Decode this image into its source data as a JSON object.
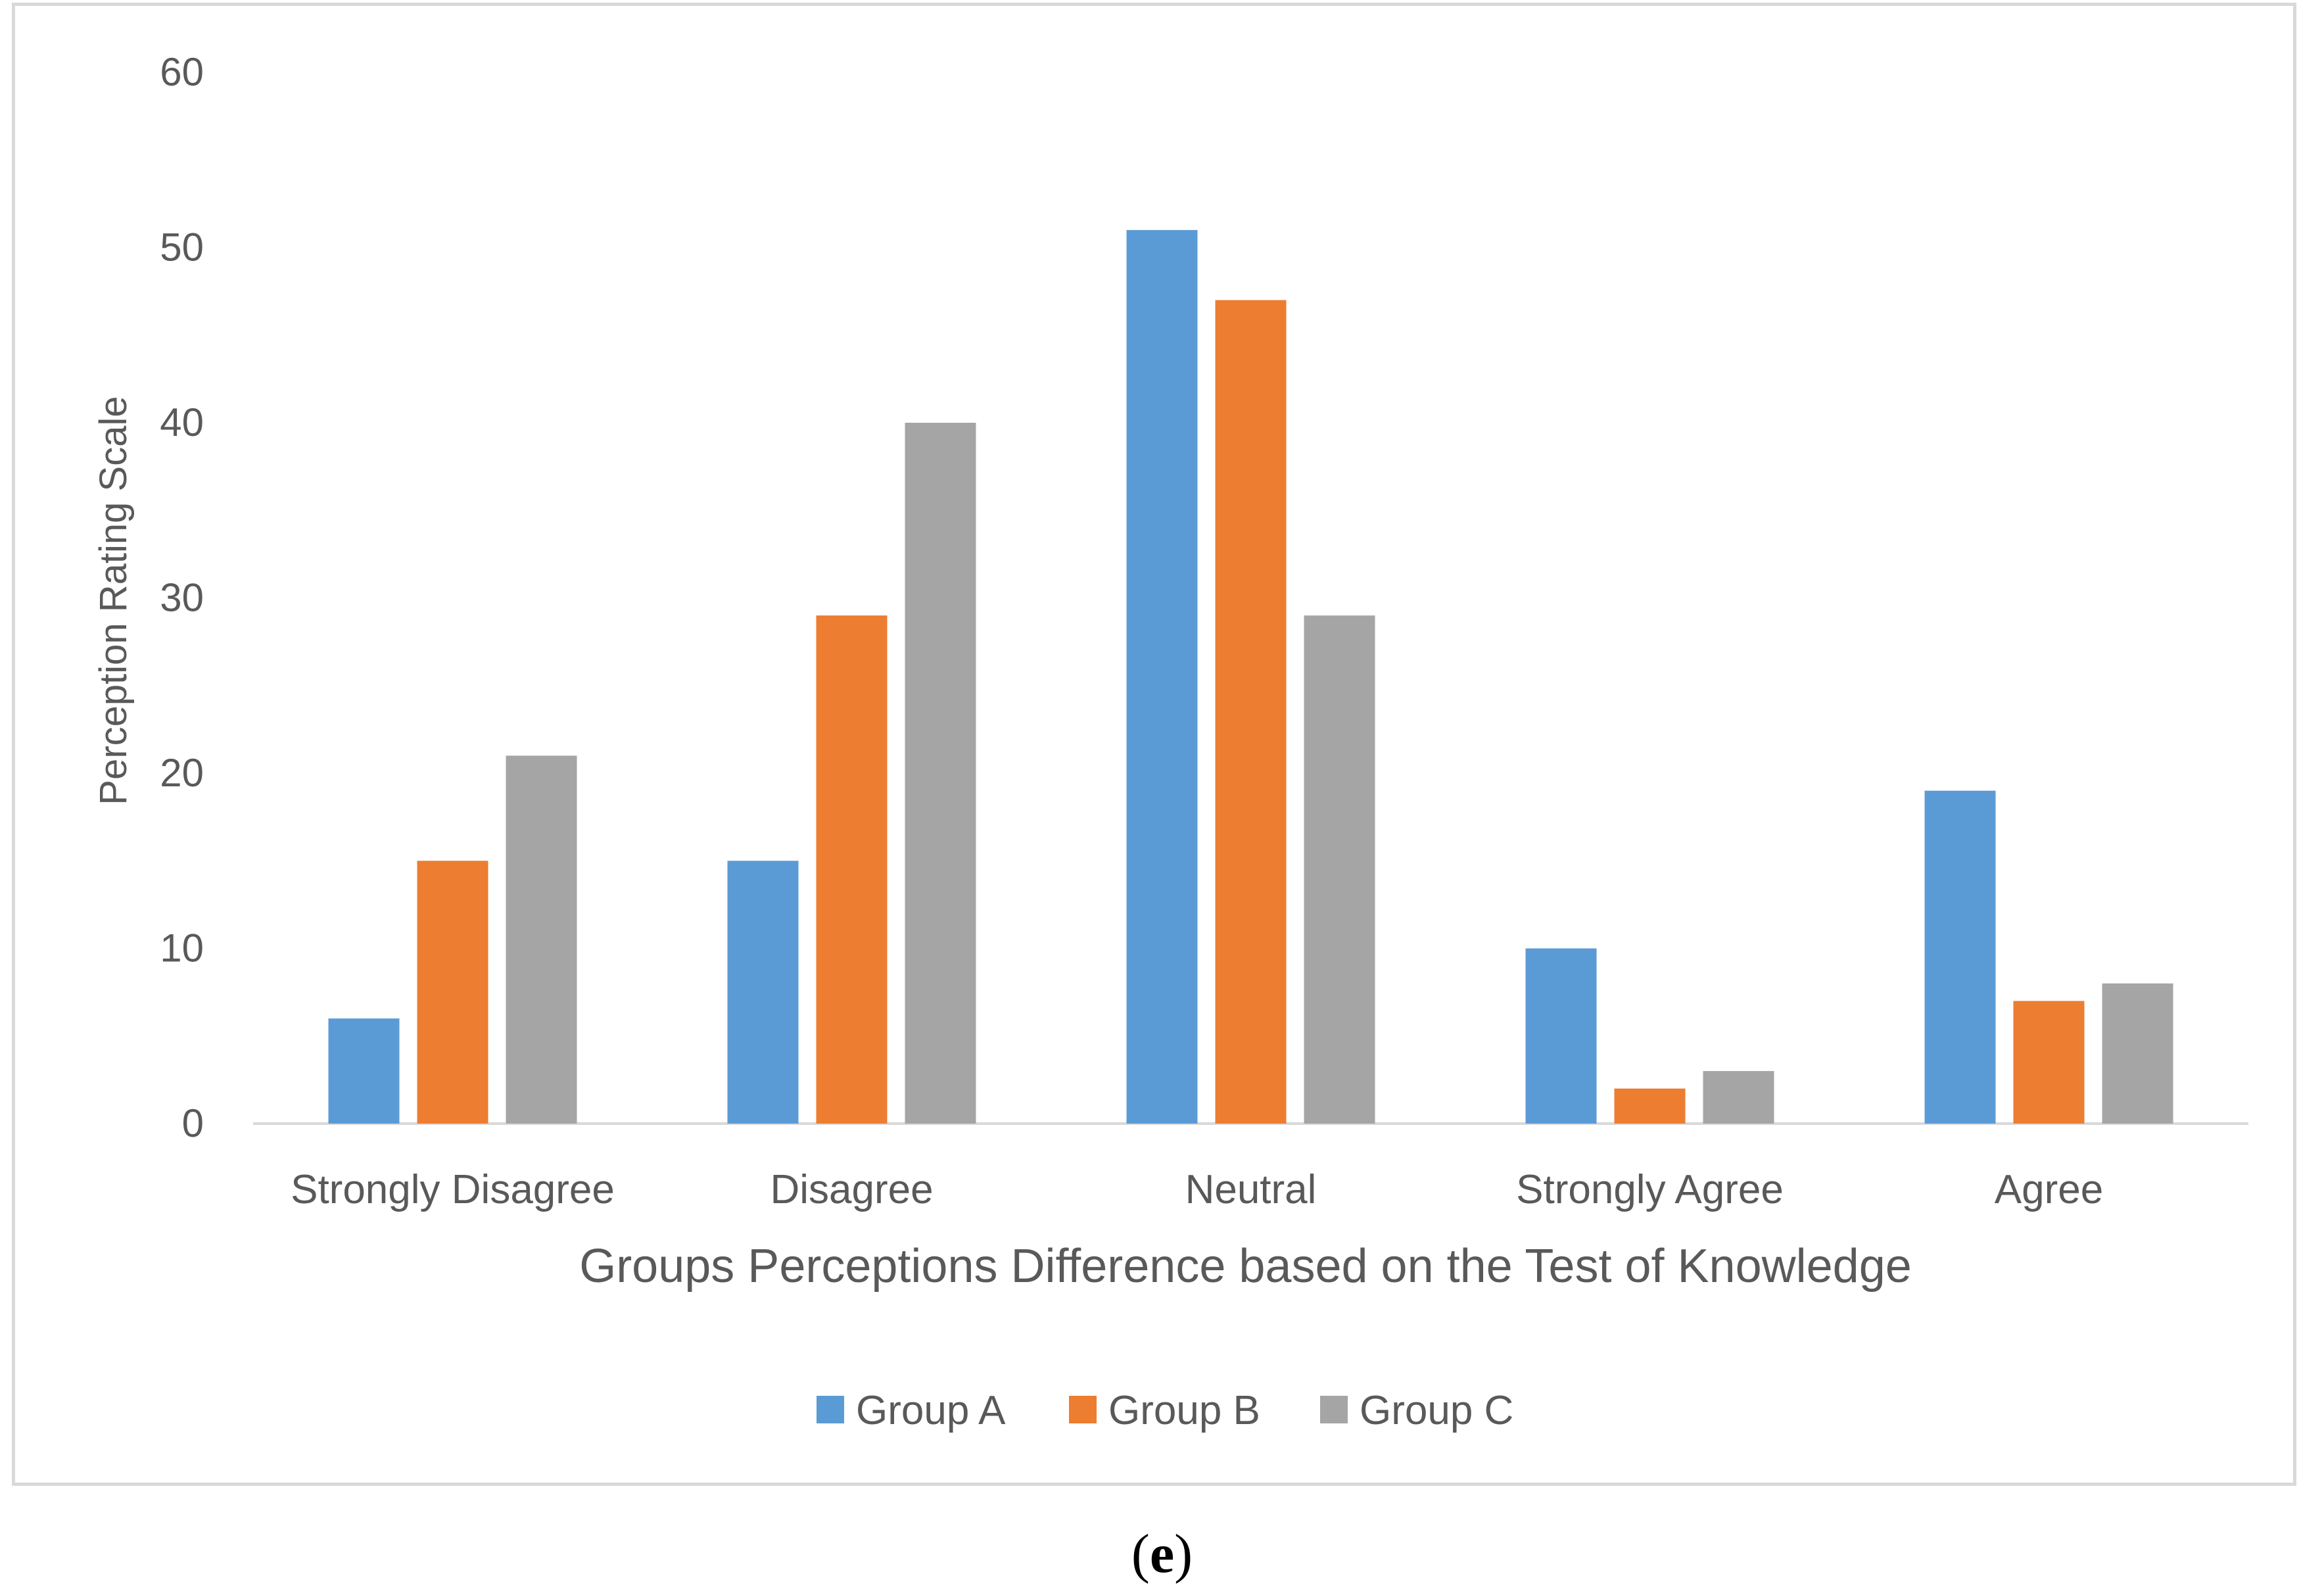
{
  "chart_data": {
    "type": "bar",
    "title": "",
    "xlabel": "Groups Perceptions Difference based on the Test of Knowledge",
    "ylabel": "Perception Rating Scale",
    "ylim": [
      0,
      60
    ],
    "yticks": [
      0,
      10,
      20,
      30,
      40,
      50,
      60
    ],
    "grid": false,
    "legend_position": "bottom",
    "categories": [
      "Strongly Disagree",
      "Disagree",
      "Neutral",
      "Strongly Agree",
      "Agree"
    ],
    "series": [
      {
        "name": "Group A",
        "color": "#5b9bd5",
        "values": [
          6,
          15,
          51,
          10,
          19
        ]
      },
      {
        "name": "Group B",
        "color": "#ed7d31",
        "values": [
          15,
          29,
          47,
          2,
          7
        ]
      },
      {
        "name": "Group C",
        "color": "#a5a5a5",
        "values": [
          21,
          40,
          29,
          3,
          8
        ]
      }
    ]
  },
  "caption": {
    "open": "(",
    "letter": "e",
    "close": ")"
  }
}
